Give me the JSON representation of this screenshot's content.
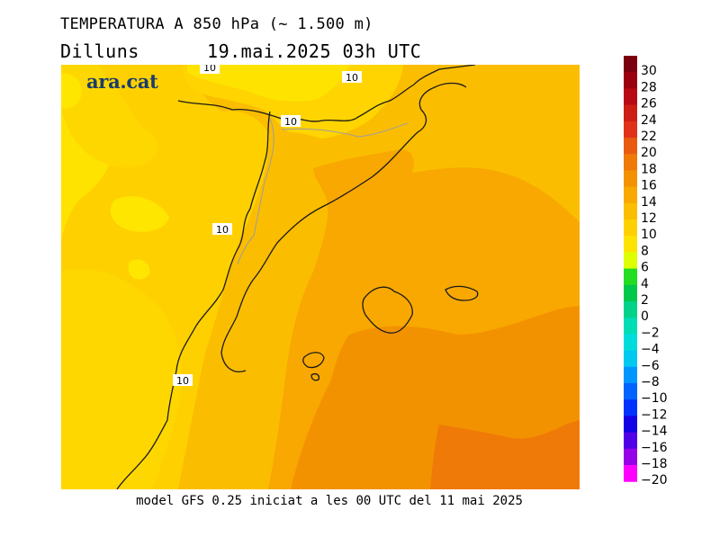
{
  "header": {
    "title": "TEMPERATURA A 850 hPa (~ 1.500 m)",
    "day": "Dilluns",
    "datetime": "19.mai.2025 03h UTC"
  },
  "map": {
    "logo": "ara.cat",
    "contour_labels": [
      "10",
      "10",
      "10",
      "10",
      "10"
    ]
  },
  "footer": "model GFS 0.25 iniciat a les 00 UTC del 11 mai 2025",
  "legend": {
    "items": [
      {
        "label": "30",
        "color": "#7a0010"
      },
      {
        "label": "28",
        "color": "#9a0010"
      },
      {
        "label": "26",
        "color": "#b80a14"
      },
      {
        "label": "24",
        "color": "#cc1e14"
      },
      {
        "label": "22",
        "color": "#e03218"
      },
      {
        "label": "20",
        "color": "#e85a10"
      },
      {
        "label": "18",
        "color": "#ef7a08"
      },
      {
        "label": "16",
        "color": "#f39200"
      },
      {
        "label": "14",
        "color": "#f8a800"
      },
      {
        "label": "12",
        "color": "#fbbd00"
      },
      {
        "label": "10",
        "color": "#ffd000"
      },
      {
        "label": "8",
        "color": "#ffe300"
      },
      {
        "label": "6",
        "color": "#ddff00"
      },
      {
        "label": "4",
        "color": "#22dd22"
      },
      {
        "label": "2",
        "color": "#00c84a"
      },
      {
        "label": "0",
        "color": "#00d28a"
      },
      {
        "label": "-2",
        "color": "#00dcb4"
      },
      {
        "label": "-4",
        "color": "#00dcdc"
      },
      {
        "label": "-6",
        "color": "#00c8f0"
      },
      {
        "label": "-8",
        "color": "#0096ff"
      },
      {
        "label": "-10",
        "color": "#0064ff"
      },
      {
        "label": "-12",
        "color": "#0032ff"
      },
      {
        "label": "-14",
        "color": "#1400e6"
      },
      {
        "label": "-16",
        "color": "#5000e6"
      },
      {
        "label": "-18",
        "color": "#9600e6"
      },
      {
        "label": "-20",
        "color": "#ff00ff"
      }
    ]
  }
}
